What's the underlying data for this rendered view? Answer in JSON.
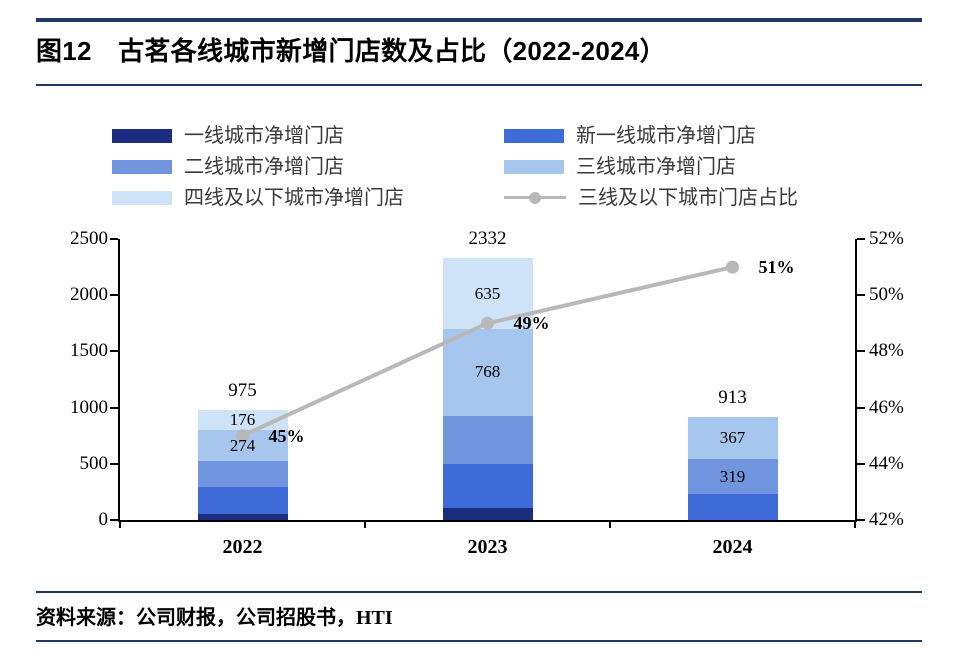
{
  "header": {
    "title": "图12　古茗各线城市新增门店数及占比（2022-2024）"
  },
  "footer": {
    "source": "资料来源：公司财报，公司招股书，HTI"
  },
  "styles": {
    "rule_color": "#1f3864",
    "axis_color": "#000000",
    "background": "#ffffff"
  },
  "chart_data": {
    "type": "stacked-bar-with-line",
    "title": "古茗各线城市新增门店数及占比（2022-2024）",
    "legend_position": "top",
    "grid": false,
    "categories": [
      "2022",
      "2023",
      "2024"
    ],
    "bar_series": [
      {
        "key": "tier1",
        "name": "一线城市净增门店",
        "color": "#1c2d80",
        "values": [
          55,
          110,
          0
        ],
        "segment_labels": [
          "",
          "",
          ""
        ]
      },
      {
        "key": "new-tier1",
        "name": "新一线城市净增门店",
        "color": "#3f6bd9",
        "values": [
          235,
          390,
          227
        ],
        "segment_labels": [
          "",
          "",
          ""
        ]
      },
      {
        "key": "tier2",
        "name": "二线城市净增门店",
        "color": "#7295e0",
        "values": [
          235,
          429,
          319
        ],
        "segment_labels": [
          "",
          "",
          "319"
        ]
      },
      {
        "key": "tier3",
        "name": "三线城市净增门店",
        "color": "#a6c6ee",
        "values": [
          274,
          768,
          367
        ],
        "segment_labels": [
          "274",
          "768",
          "367"
        ]
      },
      {
        "key": "tier4-below",
        "name": "四线及以下城市净增门店",
        "color": "#cfe3f8",
        "values": [
          176,
          635,
          0
        ],
        "segment_labels": [
          "176",
          "635",
          ""
        ]
      }
    ],
    "unlabeled_segment_values_estimated": true,
    "totals": [
      975,
      2332,
      913
    ],
    "totals_labels": [
      "975",
      "2332",
      "913"
    ],
    "line_series": {
      "key": "tier3-below-share",
      "name": "三线及以下城市门店占比",
      "color": "#b8b8b8",
      "values": [
        45,
        49,
        51
      ],
      "labels": [
        "45%",
        "49%",
        "51%"
      ]
    },
    "left_axis": {
      "min": 0,
      "max": 2500,
      "step": 500,
      "tick_values": [
        0,
        500,
        1000,
        1500,
        2000,
        2500
      ],
      "ticks": [
        "0",
        "500",
        "1000",
        "1500",
        "2000",
        "2500"
      ]
    },
    "right_axis": {
      "min": 42,
      "max": 52,
      "step": 2,
      "tick_values": [
        42,
        44,
        46,
        48,
        50,
        52
      ],
      "ticks": [
        "42%",
        "44%",
        "46%",
        "48%",
        "50%",
        "52%"
      ]
    }
  }
}
